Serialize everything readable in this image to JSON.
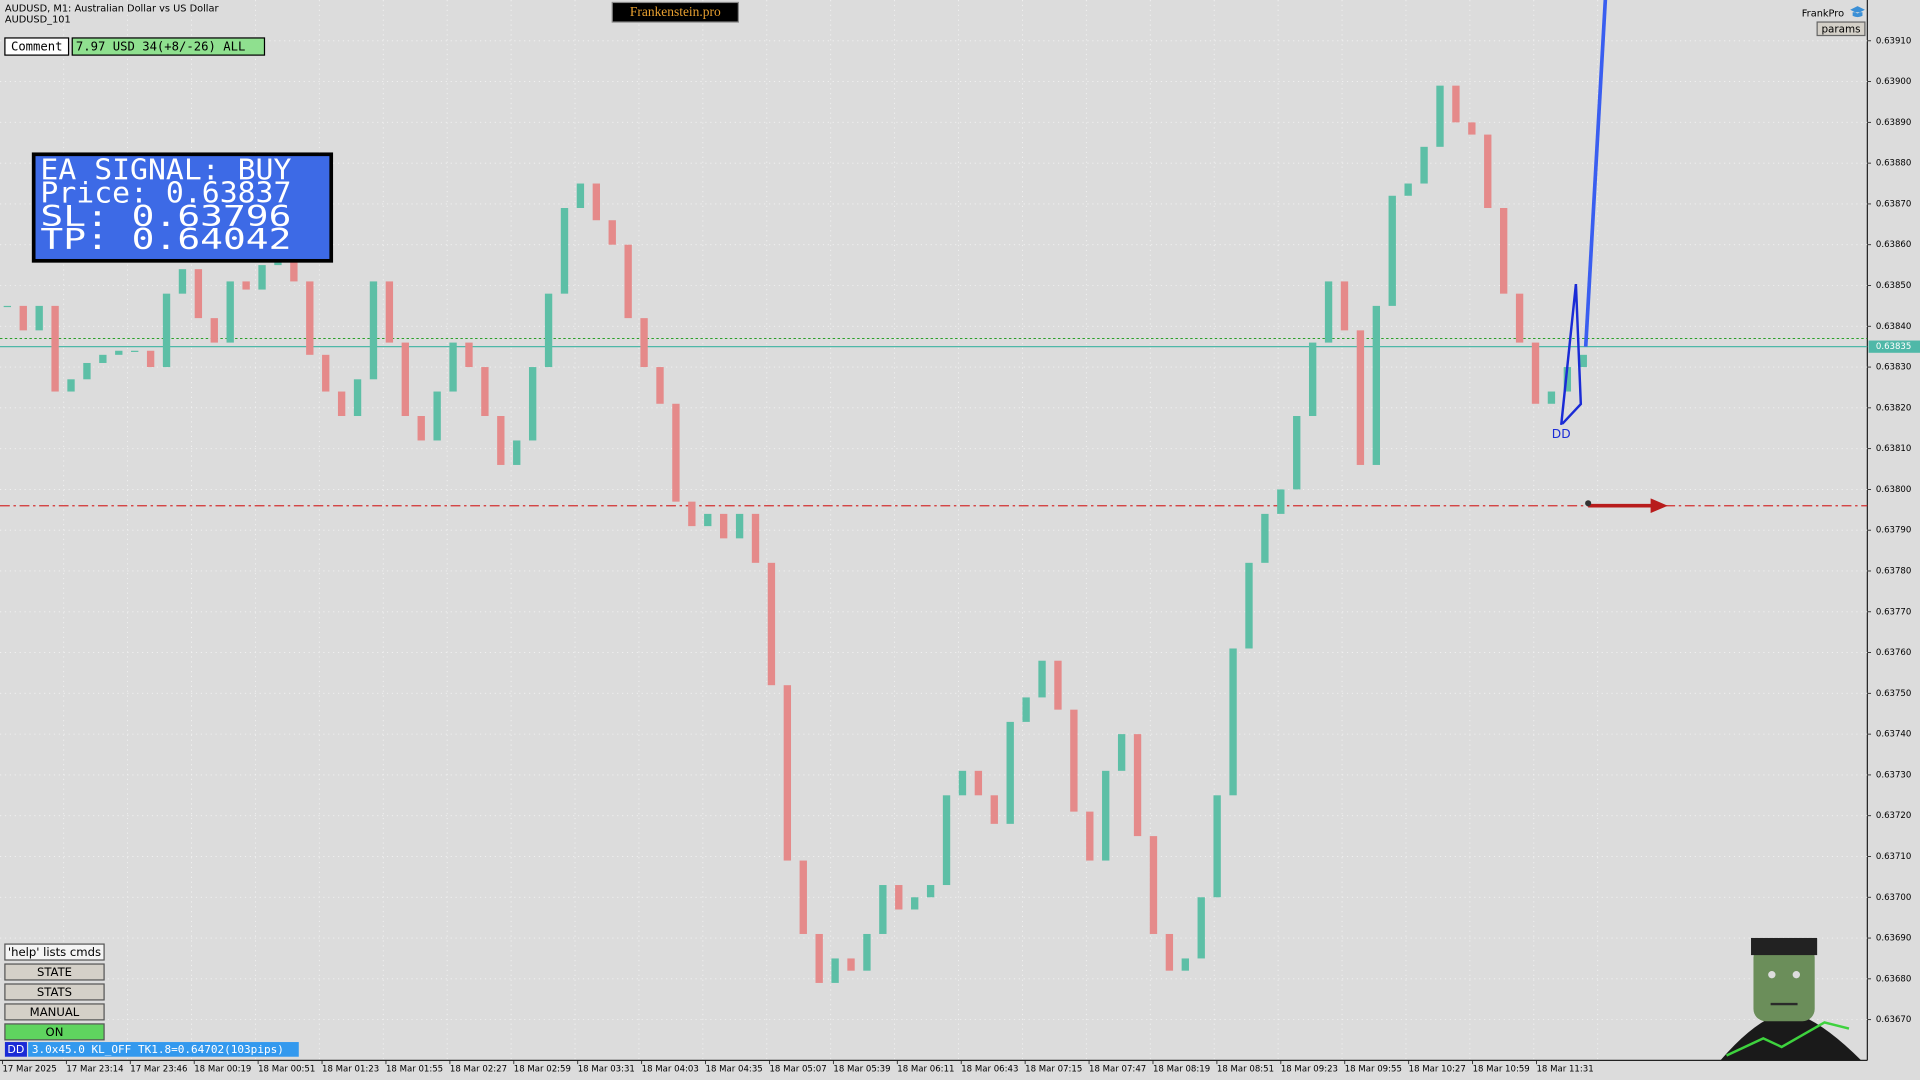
{
  "window": {
    "title": "AUDUSD, M1:  Australian Dollar vs US Dollar",
    "account": "AUDUSD_101"
  },
  "brand": "Frankenstein.pro",
  "comment": {
    "label": "Comment",
    "value": "7.97 USD 34(+8/-26) ALL"
  },
  "signal": {
    "lines": [
      "EA SIGNAL: BUY",
      "Price: 0.63837",
      "SL:    0.63796",
      "TP:    0.64042"
    ]
  },
  "top_right": {
    "name": "FrankPro",
    "button": "params"
  },
  "buttons": [
    "'help' lists cmds",
    "STATE",
    "STATS",
    "MANUAL",
    "ON"
  ],
  "status": {
    "tag": "DD",
    "text": "3.0x45.0 KL_OFF TK1.8=0.64702(103pips)"
  },
  "chart_data": {
    "type": "candlestick",
    "up_color": "#5dbfa6",
    "down_color": "#e58a8a",
    "categories": [
      "17 Mar 2025",
      "17 Mar 23:14",
      "17 Mar 23:46",
      "18 Mar 00:19",
      "18 Mar 00:51",
      "18 Mar 01:23",
      "18 Mar 01:55",
      "18 Mar 02:27",
      "18 Mar 02:59",
      "18 Mar 03:31",
      "18 Mar 04:03",
      "18 Mar 04:35",
      "18 Mar 05:07",
      "18 Mar 05:39",
      "18 Mar 06:11",
      "18 Mar 06:43",
      "18 Mar 07:15",
      "18 Mar 07:47",
      "18 Mar 08:19",
      "18 Mar 08:51",
      "18 Mar 09:23",
      "18 Mar 09:55",
      "18 Mar 10:27",
      "18 Mar 10:59",
      "18 Mar 11:31"
    ],
    "closes": [
      0.63845,
      0.63839,
      0.63845,
      0.63824,
      0.63827,
      0.63831,
      0.63833,
      0.63834,
      0.63834,
      0.6383,
      0.63848,
      0.63854,
      0.63842,
      0.63836,
      0.63851,
      0.63849,
      0.63855,
      0.63857,
      0.63851,
      0.63833,
      0.63824,
      0.63818,
      0.63827,
      0.63851,
      0.63836,
      0.63818,
      0.63812,
      0.63824,
      0.63836,
      0.6383,
      0.63818,
      0.63806,
      0.63812,
      0.6383,
      0.63848,
      0.63869,
      0.63875,
      0.63866,
      0.6386,
      0.63842,
      0.6383,
      0.63821,
      0.63797,
      0.63791,
      0.63794,
      0.63788,
      0.63794,
      0.63782,
      0.63752,
      0.63709,
      0.63691,
      0.63679,
      0.63685,
      0.63682,
      0.63691,
      0.63703,
      0.63697,
      0.637,
      0.63703,
      0.63725,
      0.63731,
      0.63725,
      0.63718,
      0.63743,
      0.63749,
      0.63758,
      0.63746,
      0.63721,
      0.63709,
      0.63731,
      0.6374,
      0.63715,
      0.63691,
      0.63682,
      0.63685,
      0.637,
      0.63725,
      0.63761,
      0.63782,
      0.63794,
      0.638,
      0.63818,
      0.63836,
      0.63851,
      0.63839,
      0.63806,
      0.63845,
      0.63872,
      0.63875,
      0.63884,
      0.63899,
      0.6389,
      0.63887,
      0.63869,
      0.63848,
      0.63836,
      0.63821,
      0.63824,
      0.6383,
      0.63833
    ],
    "ylim": [
      0.6366,
      0.6392
    ],
    "yticks": [
      {
        "value": 0.6367,
        "label": "0.63670"
      },
      {
        "value": 0.6368,
        "label": "0.63680"
      },
      {
        "value": 0.6369,
        "label": "0.63690"
      },
      {
        "value": 0.637,
        "label": "0.63700"
      },
      {
        "value": 0.6371,
        "label": "0.63710"
      },
      {
        "value": 0.6372,
        "label": "0.63720"
      },
      {
        "value": 0.6373,
        "label": "0.63730"
      },
      {
        "value": 0.6374,
        "label": "0.63740"
      },
      {
        "value": 0.6375,
        "label": "0.63750"
      },
      {
        "value": 0.6376,
        "label": "0.63760"
      },
      {
        "value": 0.6377,
        "label": "0.63770"
      },
      {
        "value": 0.6378,
        "label": "0.63780"
      },
      {
        "value": 0.6379,
        "label": "0.63790"
      },
      {
        "value": 0.638,
        "label": "0.63800"
      },
      {
        "value": 0.6381,
        "label": "0.63810"
      },
      {
        "value": 0.6382,
        "label": "0.63820"
      },
      {
        "value": 0.6383,
        "label": "0.63830"
      },
      {
        "value": 0.6384,
        "label": "0.63840"
      },
      {
        "value": 0.6385,
        "label": "0.63850"
      },
      {
        "value": 0.6386,
        "label": "0.63860"
      },
      {
        "value": 0.6387,
        "label": "0.63870"
      },
      {
        "value": 0.6388,
        "label": "0.63880"
      },
      {
        "value": 0.6389,
        "label": "0.63890"
      },
      {
        "value": 0.639,
        "label": "0.63900"
      },
      {
        "value": 0.6391,
        "label": "0.63910"
      }
    ],
    "grid": true,
    "bid": 0.63835,
    "entry_level": 0.63837,
    "sl_level": 0.63796,
    "tp_level": 0.64042,
    "marker": "DD"
  }
}
